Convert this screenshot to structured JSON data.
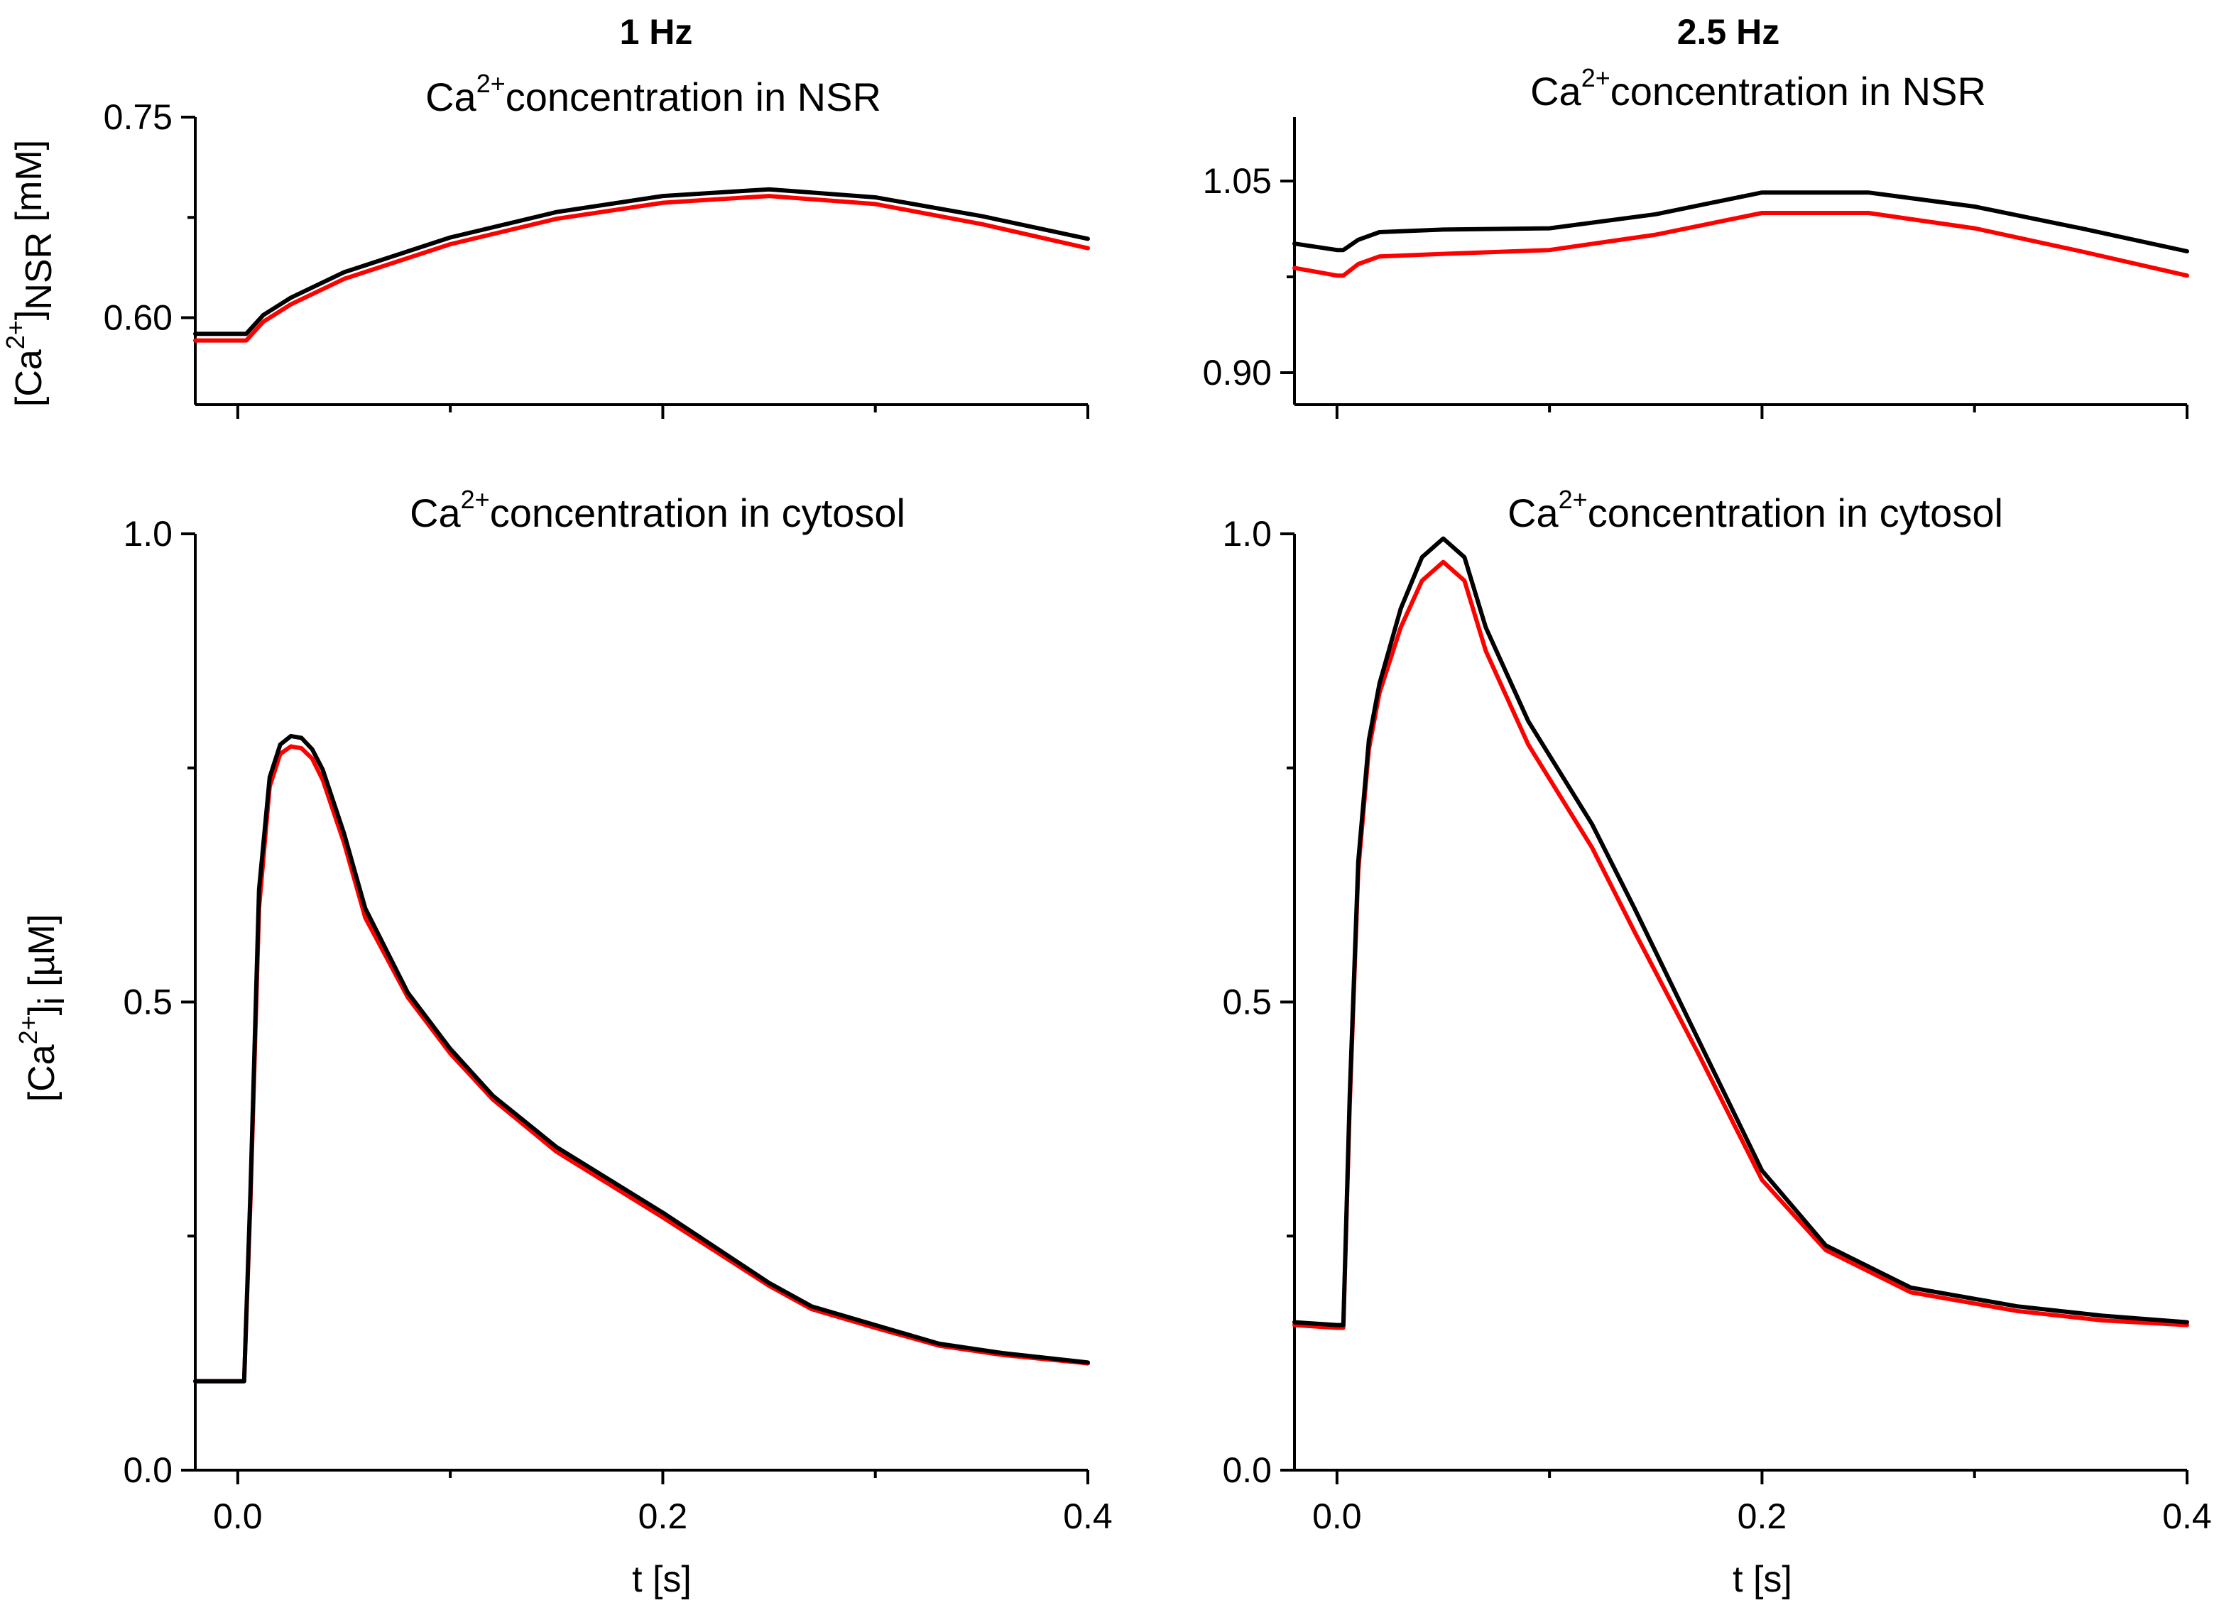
{
  "colors": {
    "series_black": "#000000",
    "series_red": "#ff0000"
  },
  "columns": [
    {
      "title": "1 Hz"
    },
    {
      "title": "2.5 Hz"
    }
  ],
  "labels": {
    "top_title_pre": "Ca",
    "top_title_sup": "2+",
    "top_title_post": "concentration in NSR",
    "bottom_title_pre": "Ca",
    "bottom_title_sup": "2+",
    "bottom_title_post": "concentration in cytosol",
    "ylabel_nsr_pre": "[Ca",
    "ylabel_nsr_sup": "2+",
    "ylabel_nsr_mid": "]",
    "ylabel_nsr_sub": "NSR",
    "ylabel_nsr_post": " [mM]",
    "ylabel_i_pre": "[Ca",
    "ylabel_i_sup": "2+",
    "ylabel_i_mid": "]",
    "ylabel_i_sub": "i",
    "ylabel_i_post": " [µM]",
    "xlabel": "t [s]"
  },
  "chart_data": [
    {
      "type": "line",
      "column": "1 Hz",
      "title": "Ca2+concentration in NSR",
      "xlabel": "",
      "ylabel": "[Ca2+]NSR [mM]",
      "xlim": [
        -0.02,
        0.4
      ],
      "ylim": [
        0.535,
        0.75
      ],
      "xticks": [
        0.0,
        0.2,
        0.4
      ],
      "xtick_labels": [],
      "yticks": [
        0.6,
        0.75
      ],
      "ytick_labels": [
        "0.60",
        "0.75"
      ],
      "series": [
        {
          "color": "black",
          "x": [
            -0.02,
            0.0,
            0.004,
            0.012,
            0.025,
            0.05,
            0.1,
            0.15,
            0.2,
            0.25,
            0.3,
            0.35,
            0.4
          ],
          "y": [
            0.588,
            0.588,
            0.588,
            0.602,
            0.615,
            0.634,
            0.66,
            0.679,
            0.691,
            0.696,
            0.69,
            0.676,
            0.659
          ]
        },
        {
          "color": "red",
          "x": [
            -0.02,
            0.0,
            0.004,
            0.012,
            0.025,
            0.05,
            0.1,
            0.15,
            0.2,
            0.25,
            0.3,
            0.35,
            0.4
          ],
          "y": [
            0.583,
            0.583,
            0.583,
            0.597,
            0.61,
            0.629,
            0.655,
            0.674,
            0.686,
            0.691,
            0.685,
            0.67,
            0.652
          ]
        }
      ]
    },
    {
      "type": "line",
      "column": "2.5 Hz",
      "title": "Ca2+concentration in NSR",
      "xlabel": "",
      "ylabel": "",
      "xlim": [
        -0.02,
        0.4
      ],
      "ylim": [
        0.875,
        1.1
      ],
      "xticks": [
        0.0,
        0.2,
        0.4
      ],
      "xtick_labels": [],
      "yticks": [
        0.9,
        1.05
      ],
      "ytick_labels": [
        "0.90",
        "1.05"
      ],
      "series": [
        {
          "color": "black",
          "x": [
            -0.02,
            0.0,
            0.003,
            0.01,
            0.02,
            0.05,
            0.1,
            0.15,
            0.2,
            0.25,
            0.3,
            0.35,
            0.4
          ],
          "y": [
            1.001,
            0.996,
            0.996,
            1.004,
            1.01,
            1.012,
            1.013,
            1.024,
            1.041,
            1.041,
            1.03,
            1.013,
            0.995
          ]
        },
        {
          "color": "red",
          "x": [
            -0.02,
            0.0,
            0.003,
            0.01,
            0.02,
            0.05,
            0.1,
            0.15,
            0.2,
            0.25,
            0.3,
            0.35,
            0.4
          ],
          "y": [
            0.982,
            0.976,
            0.976,
            0.985,
            0.991,
            0.993,
            0.996,
            1.008,
            1.025,
            1.025,
            1.013,
            0.995,
            0.976
          ]
        }
      ]
    },
    {
      "type": "line",
      "column": "1 Hz",
      "title": "Ca2+concentration in cytosol",
      "xlabel": "t [s]",
      "ylabel": "[Ca2+]i [µM]",
      "xlim": [
        -0.02,
        0.4
      ],
      "ylim": [
        0.0,
        1.0
      ],
      "xticks": [
        0.0,
        0.2,
        0.4
      ],
      "xtick_labels": [
        "0.0",
        "0.2",
        "0.4"
      ],
      "yticks": [
        0.0,
        0.5,
        1.0
      ],
      "ytick_labels": [
        "0.0",
        "0.5",
        "1.0"
      ],
      "series": [
        {
          "color": "black",
          "x": [
            -0.02,
            0.0,
            0.003,
            0.006,
            0.01,
            0.015,
            0.02,
            0.025,
            0.03,
            0.035,
            0.04,
            0.05,
            0.06,
            0.08,
            0.1,
            0.12,
            0.15,
            0.2,
            0.25,
            0.27,
            0.3,
            0.33,
            0.36,
            0.4
          ],
          "y": [
            0.095,
            0.095,
            0.095,
            0.3,
            0.62,
            0.74,
            0.775,
            0.784,
            0.782,
            0.77,
            0.748,
            0.68,
            0.6,
            0.51,
            0.45,
            0.4,
            0.345,
            0.275,
            0.2,
            0.175,
            0.155,
            0.135,
            0.125,
            0.115
          ]
        },
        {
          "color": "red",
          "x": [
            -0.02,
            0.0,
            0.003,
            0.006,
            0.01,
            0.015,
            0.02,
            0.025,
            0.03,
            0.035,
            0.04,
            0.05,
            0.06,
            0.08,
            0.1,
            0.12,
            0.15,
            0.2,
            0.25,
            0.27,
            0.3,
            0.33,
            0.36,
            0.4
          ],
          "y": [
            0.095,
            0.095,
            0.095,
            0.29,
            0.6,
            0.73,
            0.765,
            0.773,
            0.771,
            0.76,
            0.737,
            0.67,
            0.59,
            0.505,
            0.445,
            0.396,
            0.34,
            0.27,
            0.197,
            0.172,
            0.152,
            0.133,
            0.123,
            0.114
          ]
        }
      ]
    },
    {
      "type": "line",
      "column": "2.5 Hz",
      "title": "Ca2+concentration in cytosol",
      "xlabel": "t [s]",
      "ylabel": "",
      "xlim": [
        -0.02,
        0.4
      ],
      "ylim": [
        0.0,
        1.0
      ],
      "xticks": [
        0.0,
        0.2,
        0.4
      ],
      "xtick_labels": [
        "0.0",
        "0.2",
        "0.4"
      ],
      "yticks": [
        0.0,
        0.5,
        1.0
      ],
      "ytick_labels": [
        "0.0",
        "0.5",
        "1.0"
      ],
      "series": [
        {
          "color": "black",
          "x": [
            -0.02,
            0.0,
            0.003,
            0.006,
            0.01,
            0.015,
            0.02,
            0.03,
            0.04,
            0.05,
            0.06,
            0.07,
            0.09,
            0.12,
            0.14,
            0.17,
            0.2,
            0.23,
            0.27,
            0.32,
            0.36,
            0.4
          ],
          "y": [
            0.158,
            0.155,
            0.155,
            0.4,
            0.65,
            0.78,
            0.84,
            0.92,
            0.975,
            0.995,
            0.975,
            0.9,
            0.8,
            0.69,
            0.6,
            0.46,
            0.32,
            0.24,
            0.195,
            0.175,
            0.165,
            0.158
          ]
        },
        {
          "color": "red",
          "x": [
            -0.02,
            0.0,
            0.003,
            0.006,
            0.01,
            0.015,
            0.02,
            0.03,
            0.04,
            0.05,
            0.06,
            0.07,
            0.09,
            0.12,
            0.14,
            0.17,
            0.2,
            0.23,
            0.27,
            0.32,
            0.36,
            0.4
          ],
          "y": [
            0.155,
            0.152,
            0.152,
            0.39,
            0.64,
            0.77,
            0.83,
            0.9,
            0.95,
            0.97,
            0.95,
            0.875,
            0.775,
            0.665,
            0.575,
            0.445,
            0.31,
            0.235,
            0.19,
            0.17,
            0.16,
            0.155
          ]
        }
      ]
    }
  ]
}
